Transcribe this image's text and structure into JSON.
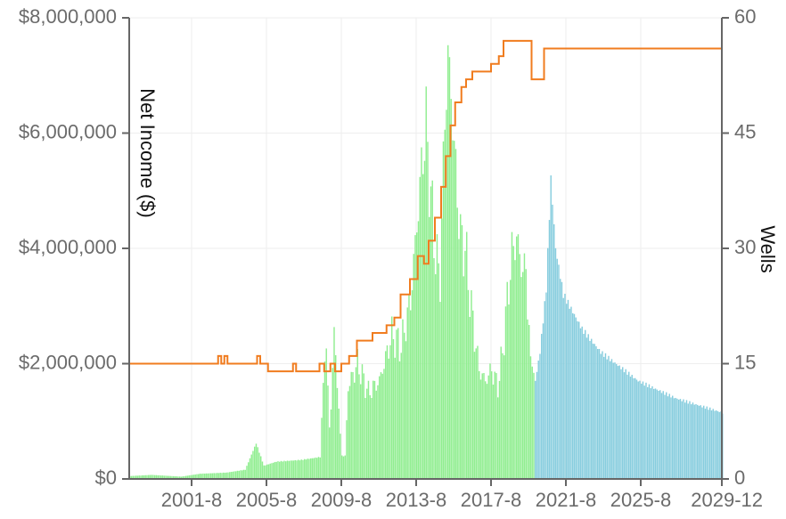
{
  "chart_data": {
    "type": "bar",
    "title": "",
    "ylabel_left": "Net Income ($)",
    "ylabel_right": "Wells",
    "x_ticks": [
      "2001-8",
      "2005-8",
      "2009-8",
      "2013-8",
      "2017-8",
      "2021-8",
      "2025-8",
      "2029-12"
    ],
    "y_left_ticks": [
      "$0",
      "$2,000,000",
      "$4,000,000",
      "$6,000,000",
      "$8,000,000"
    ],
    "y_right_ticks": [
      "0",
      "15",
      "30",
      "45",
      "60"
    ],
    "x_range": [
      "1998-4",
      "2029-12"
    ],
    "y_left_range": [
      0,
      8000000
    ],
    "y_right_range": [
      0,
      60
    ],
    "grid": true,
    "legend": "none",
    "colors": {
      "historical": "#90ee90",
      "forecast": "#87cdde",
      "wells_line": "#f07c1f",
      "axis": "#666666",
      "grid": "#eeeeee"
    },
    "forecast_start": "2019-12",
    "net_income_series": {
      "name": "",
      "interpolation": "linear between points; monthly bars",
      "points": [
        [
          "1998-4",
          50000
        ],
        [
          "1999-6",
          70000
        ],
        [
          "2001-1",
          40000
        ],
        [
          "2002-1",
          90000
        ],
        [
          "2003-6",
          110000
        ],
        [
          "2004-6",
          160000
        ],
        [
          "2005-1",
          620000
        ],
        [
          "2005-6",
          230000
        ],
        [
          "2006-2",
          300000
        ],
        [
          "2007-6",
          330000
        ],
        [
          "2008-6",
          380000
        ],
        [
          "2008-8",
          1700000
        ],
        [
          "2008-10",
          2300000
        ],
        [
          "2008-12",
          900000
        ],
        [
          "2009-1",
          1200000
        ],
        [
          "2009-3",
          2650000
        ],
        [
          "2009-5",
          1600000
        ],
        [
          "2009-8",
          400000
        ],
        [
          "2009-10",
          400000
        ],
        [
          "2009-12",
          1600000
        ],
        [
          "2010-6",
          2000000
        ],
        [
          "2011-1",
          1500000
        ],
        [
          "2011-8",
          1700000
        ],
        [
          "2012-4",
          2500000
        ],
        [
          "2012-10",
          2300000
        ],
        [
          "2013-4",
          3100000
        ],
        [
          "2013-8",
          4400000
        ],
        [
          "2013-12",
          5700000
        ],
        [
          "2014-2",
          6100000
        ],
        [
          "2014-5",
          4900000
        ],
        [
          "2014-8",
          3900000
        ],
        [
          "2014-11",
          3500000
        ],
        [
          "2015-2",
          6300000
        ],
        [
          "2015-4",
          7300000
        ],
        [
          "2015-6",
          6700000
        ],
        [
          "2015-9",
          5300000
        ],
        [
          "2015-12",
          4200000
        ],
        [
          "2016-3",
          4000000
        ],
        [
          "2016-6",
          3200000
        ],
        [
          "2016-9",
          2500000
        ],
        [
          "2016-12",
          1900000
        ],
        [
          "2017-4",
          1700000
        ],
        [
          "2017-8",
          1900000
        ],
        [
          "2017-12",
          1600000
        ],
        [
          "2018-3",
          2200000
        ],
        [
          "2018-6",
          3100000
        ],
        [
          "2018-9",
          3900000
        ],
        [
          "2018-12",
          4200000
        ],
        [
          "2019-3",
          3700000
        ],
        [
          "2019-6",
          3600000
        ],
        [
          "2019-9",
          2100000
        ],
        [
          "2019-12",
          1700000
        ],
        [
          "2020-3",
          2200000
        ],
        [
          "2020-7",
          3300000
        ],
        [
          "2020-10",
          5200000
        ],
        [
          "2021-1",
          4000000
        ],
        [
          "2021-6",
          3200000
        ],
        [
          "2022-6",
          2600000
        ],
        [
          "2023-6",
          2200000
        ],
        [
          "2024-6",
          1950000
        ],
        [
          "2025-6",
          1700000
        ],
        [
          "2026-6",
          1550000
        ],
        [
          "2027-6",
          1400000
        ],
        [
          "2028-6",
          1300000
        ],
        [
          "2029-12",
          1150000
        ]
      ]
    },
    "wells_series": {
      "name": "",
      "type": "step",
      "points": [
        [
          "1998-4",
          15
        ],
        [
          "2003-1",
          16
        ],
        [
          "2003-3",
          15
        ],
        [
          "2003-5",
          16
        ],
        [
          "2003-7",
          15
        ],
        [
          "2005-2",
          16
        ],
        [
          "2005-4",
          15
        ],
        [
          "2005-9",
          14
        ],
        [
          "2007-1",
          15
        ],
        [
          "2007-3",
          14
        ],
        [
          "2008-6",
          15
        ],
        [
          "2008-9",
          14
        ],
        [
          "2009-1",
          15
        ],
        [
          "2009-4",
          14
        ],
        [
          "2009-8",
          15
        ],
        [
          "2010-1",
          16
        ],
        [
          "2010-6",
          18
        ],
        [
          "2011-4",
          19
        ],
        [
          "2012-1",
          20
        ],
        [
          "2012-6",
          21
        ],
        [
          "2012-10",
          24
        ],
        [
          "2013-4",
          26
        ],
        [
          "2013-9",
          29
        ],
        [
          "2014-1",
          28
        ],
        [
          "2014-4",
          31
        ],
        [
          "2014-8",
          34
        ],
        [
          "2014-12",
          38
        ],
        [
          "2015-3",
          42
        ],
        [
          "2015-6",
          46
        ],
        [
          "2015-9",
          49
        ],
        [
          "2016-1",
          51
        ],
        [
          "2016-4",
          52
        ],
        [
          "2016-8",
          53
        ],
        [
          "2017-8",
          54
        ],
        [
          "2018-1",
          55
        ],
        [
          "2018-4",
          57
        ],
        [
          "2019-10",
          52
        ],
        [
          "2020-6",
          56
        ],
        [
          "2029-12",
          56
        ]
      ]
    }
  }
}
